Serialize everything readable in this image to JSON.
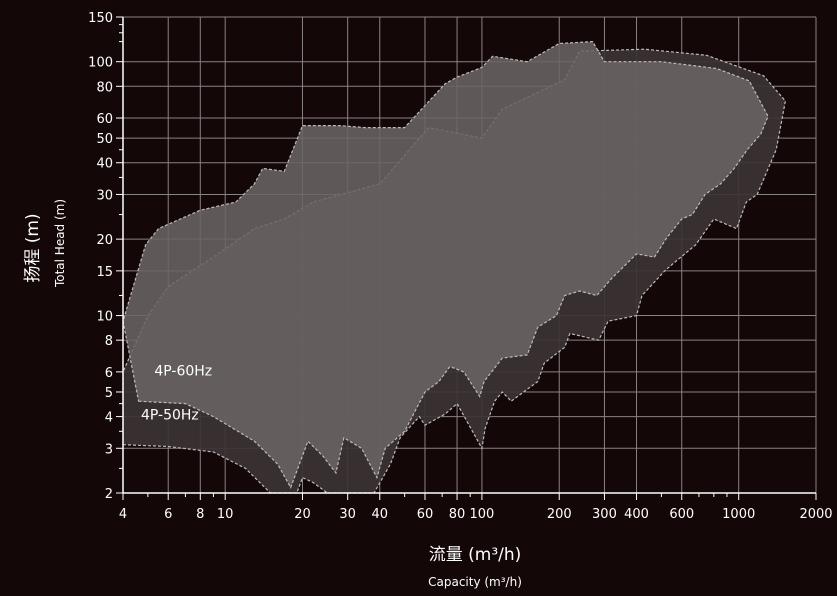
{
  "chart_data": {
    "type": "area",
    "xscale": "log",
    "yscale": "log",
    "xlim": [
      4,
      2000
    ],
    "ylim": [
      2,
      150
    ],
    "grid": true,
    "xlabel": {
      "main": "流量 (m³/h)",
      "sub": "Capacity (m³/h)"
    },
    "ylabel": {
      "main": "扬程 (m)",
      "sub": "Total Head (m)"
    },
    "x_tick_values": [
      4,
      6,
      8,
      10,
      20,
      30,
      40,
      60,
      80,
      100,
      200,
      300,
      400,
      600,
      1000,
      2000
    ],
    "x_tick_labels": [
      "4",
      "6",
      "8",
      "10",
      "20",
      "30",
      "40",
      "60",
      "80",
      "100",
      "200",
      "300",
      "400",
      "600",
      "1000",
      "2000"
    ],
    "y_tick_values": [
      2,
      3,
      4,
      5,
      6,
      8,
      10,
      15,
      20,
      30,
      40,
      50,
      60,
      80,
      100,
      150
    ],
    "y_tick_labels": [
      "2",
      "3",
      "4",
      "5",
      "6",
      "8",
      "10",
      "15",
      "20",
      "30",
      "40",
      "50",
      "60",
      "80",
      "100",
      "150"
    ],
    "x_minor_ticks": [
      5,
      7,
      9,
      50,
      70,
      90,
      500,
      700,
      800,
      900
    ],
    "y_minor_ticks": [
      7,
      9,
      70,
      90,
      120
    ],
    "y_minor_ticks_ext": [
      2.5,
      3.5,
      4.5,
      12,
      25,
      35,
      45,
      120,
      130,
      140
    ],
    "colors": {
      "background": "#130708",
      "grid": "#8a8383",
      "axis": "#ffffff",
      "envelope_50hz": "#3b3334",
      "envelope_60hz": "#6a6464",
      "envelope_edge": "#bfbaba"
    },
    "series": [
      {
        "name": "4P-50Hz",
        "label": {
          "x": 4.7,
          "y": 3.9
        },
        "polygon": [
          [
            4,
            3.1
          ],
          [
            6,
            3.05
          ],
          [
            9,
            2.9
          ],
          [
            12,
            2.5
          ],
          [
            15,
            2.0
          ],
          [
            19,
            2.0
          ],
          [
            20,
            2.3
          ],
          [
            22,
            2.2
          ],
          [
            25,
            2.0
          ],
          [
            38,
            2.0
          ],
          [
            44,
            2.6
          ],
          [
            48,
            3.3
          ],
          [
            57,
            4.0
          ],
          [
            60,
            3.7
          ],
          [
            72,
            4.1
          ],
          [
            80,
            4.5
          ],
          [
            100,
            3.0
          ],
          [
            103,
            3.6
          ],
          [
            112,
            4.6
          ],
          [
            120,
            5.0
          ],
          [
            130,
            4.6
          ],
          [
            165,
            5.5
          ],
          [
            175,
            6.5
          ],
          [
            210,
            7.5
          ],
          [
            220,
            8.5
          ],
          [
            285,
            8.0
          ],
          [
            310,
            9.5
          ],
          [
            400,
            10.0
          ],
          [
            420,
            12.0
          ],
          [
            515,
            15.0
          ],
          [
            555,
            16.0
          ],
          [
            680,
            19.0
          ],
          [
            800,
            24.0
          ],
          [
            980,
            22.0
          ],
          [
            1070,
            28.0
          ],
          [
            1180,
            30.0
          ],
          [
            1400,
            45.0
          ],
          [
            1520,
            70.0
          ],
          [
            1250,
            88.0
          ],
          [
            750,
            106.0
          ],
          [
            430,
            112.0
          ],
          [
            240,
            110.0
          ],
          [
            210,
            85.0
          ],
          [
            120,
            65.0
          ],
          [
            100,
            50.0
          ],
          [
            62,
            55.0
          ],
          [
            40,
            33.0
          ],
          [
            22,
            28.0
          ],
          [
            17,
            24.0
          ],
          [
            13,
            22.0
          ],
          [
            9,
            17.0
          ],
          [
            6,
            13.0
          ],
          [
            5,
            10.0
          ],
          [
            4,
            6.0
          ]
        ]
      },
      {
        "name": "4P-60Hz",
        "label": {
          "x": 5.3,
          "y": 5.8
        },
        "polygon": [
          [
            4.6,
            4.6
          ],
          [
            7,
            4.5
          ],
          [
            9,
            4.0
          ],
          [
            13,
            3.2
          ],
          [
            16,
            2.6
          ],
          [
            18,
            2.1
          ],
          [
            21,
            3.2
          ],
          [
            24,
            2.8
          ],
          [
            27,
            2.4
          ],
          [
            29,
            3.3
          ],
          [
            34,
            3.0
          ],
          [
            39,
            2.3
          ],
          [
            42,
            3.0
          ],
          [
            50,
            3.5
          ],
          [
            60,
            5.0
          ],
          [
            68,
            5.5
          ],
          [
            75,
            6.3
          ],
          [
            85,
            6.0
          ],
          [
            98,
            4.8
          ],
          [
            102,
            5.5
          ],
          [
            120,
            6.8
          ],
          [
            150,
            7.0
          ],
          [
            165,
            9.0
          ],
          [
            195,
            10.0
          ],
          [
            210,
            12.0
          ],
          [
            240,
            12.5
          ],
          [
            280,
            12.0
          ],
          [
            320,
            14.0
          ],
          [
            400,
            17.5
          ],
          [
            470,
            17.0
          ],
          [
            520,
            20.0
          ],
          [
            600,
            24.0
          ],
          [
            660,
            25.0
          ],
          [
            740,
            30.0
          ],
          [
            850,
            33.0
          ],
          [
            960,
            38.0
          ],
          [
            1080,
            45.0
          ],
          [
            1220,
            52.0
          ],
          [
            1300,
            61.0
          ],
          [
            1100,
            84.0
          ],
          [
            820,
            94.0
          ],
          [
            500,
            100.0
          ],
          [
            300,
            100.0
          ],
          [
            270,
            120.0
          ],
          [
            200,
            118.0
          ],
          [
            150,
            100.0
          ],
          [
            110,
            105.0
          ],
          [
            100,
            95.0
          ],
          [
            80,
            87.0
          ],
          [
            72,
            82.0
          ],
          [
            50,
            55.0
          ],
          [
            35,
            55.0
          ],
          [
            28,
            56.0
          ],
          [
            20,
            56.0
          ],
          [
            17,
            37.0
          ],
          [
            14,
            38.0
          ],
          [
            13,
            33.0
          ],
          [
            11,
            28.0
          ],
          [
            8,
            26.0
          ],
          [
            5.5,
            22.0
          ],
          [
            4.9,
            19.0
          ],
          [
            4,
            9.5
          ]
        ]
      }
    ]
  }
}
